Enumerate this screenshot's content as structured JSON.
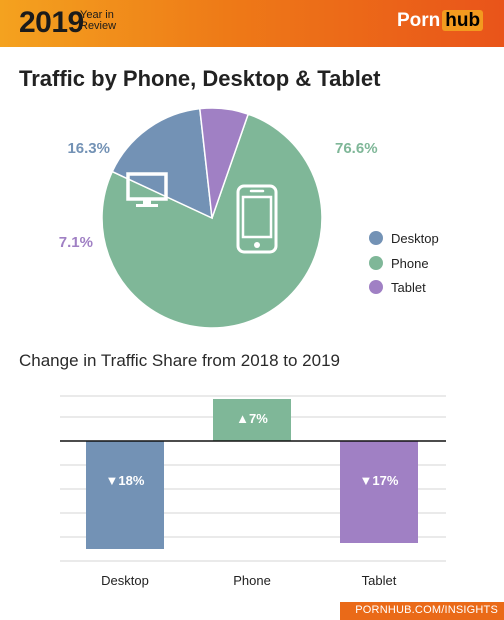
{
  "header": {
    "year": "2019",
    "year_in_review_1": "Year in",
    "year_in_review_2": "Review",
    "brand_1": "Porn",
    "brand_2": "hub"
  },
  "footer": {
    "url": "PORNHUB.COM/INSIGHTS"
  },
  "colors": {
    "desktop": "#7392b5",
    "phone": "#7fb798",
    "tablet": "#a080c4",
    "accent": "#ee7a17"
  },
  "chart_data": [
    {
      "type": "pie",
      "title": "Traffic by Phone, Desktop & Tablet",
      "labels": [
        "Phone",
        "Desktop",
        "Tablet"
      ],
      "values": [
        76.6,
        16.3,
        7.1
      ],
      "value_labels": [
        "76.6%",
        "16.3%",
        "7.1%"
      ],
      "icons": [
        "phone-icon",
        "desktop-monitor-icon",
        ""
      ],
      "legend": [
        "Desktop",
        "Phone",
        "Tablet"
      ],
      "legend_position": "right"
    },
    {
      "type": "bar",
      "title": "Change in Traffic Share from 2018 to 2019",
      "categories": [
        "Desktop",
        "Phone",
        "Tablet"
      ],
      "values": [
        -18,
        7,
        -17
      ],
      "value_labels": [
        "▼18%",
        "▲7%",
        "▼17%"
      ],
      "ylim": [
        -20,
        7.5
      ],
      "grid": true
    }
  ]
}
